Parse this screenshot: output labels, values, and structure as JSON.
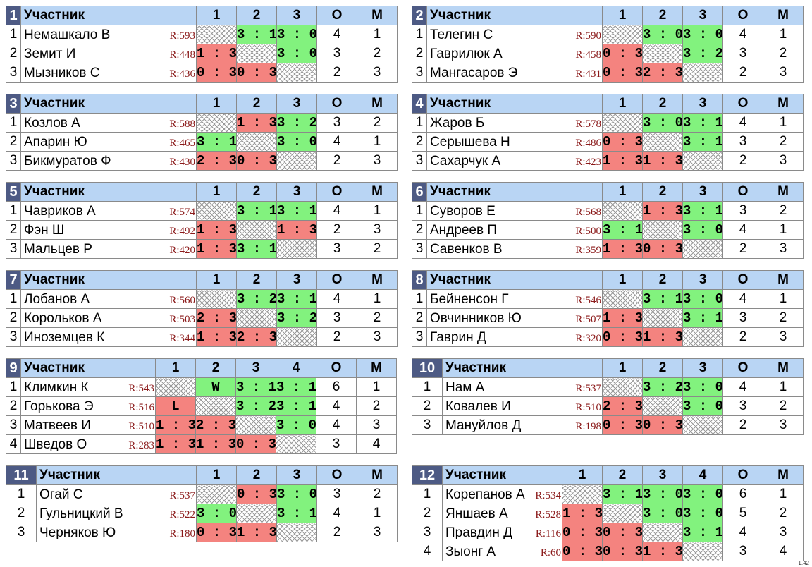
{
  "header": {
    "participant": "Участник",
    "points": "О",
    "place": "М"
  },
  "version": "1.42",
  "groups": [
    {
      "num": "1",
      "cols": [
        "1",
        "2",
        "3"
      ],
      "players": [
        {
          "idx": "1",
          "name": "Немашкало В",
          "rating": "R:593",
          "results": [
            "",
            "3 : 1",
            "3 : 0"
          ],
          "types": [
            "self",
            "win",
            "win"
          ],
          "points": "4",
          "place": "1"
        },
        {
          "idx": "2",
          "name": "Земит И",
          "rating": "R:448",
          "results": [
            "1 : 3",
            "",
            "3 : 0"
          ],
          "types": [
            "loss",
            "self",
            "win"
          ],
          "points": "3",
          "place": "2"
        },
        {
          "idx": "3",
          "name": "Мызников С",
          "rating": "R:436",
          "results": [
            "0 : 3",
            "0 : 3",
            ""
          ],
          "types": [
            "loss",
            "loss",
            "self"
          ],
          "points": "2",
          "place": "3"
        }
      ]
    },
    {
      "num": "2",
      "cols": [
        "1",
        "2",
        "3"
      ],
      "players": [
        {
          "idx": "1",
          "name": "Телегин С",
          "rating": "R:590",
          "results": [
            "",
            "3 : 0",
            "3 : 0"
          ],
          "types": [
            "self",
            "win",
            "win"
          ],
          "points": "4",
          "place": "1"
        },
        {
          "idx": "2",
          "name": "Гаврилюк А",
          "rating": "R:458",
          "results": [
            "0 : 3",
            "",
            "3 : 2"
          ],
          "types": [
            "loss",
            "self",
            "win"
          ],
          "points": "3",
          "place": "2"
        },
        {
          "idx": "3",
          "name": "Мангасаров Э",
          "rating": "R:431",
          "results": [
            "0 : 3",
            "2 : 3",
            ""
          ],
          "types": [
            "loss",
            "loss",
            "self"
          ],
          "points": "2",
          "place": "3"
        }
      ]
    },
    {
      "num": "3",
      "cols": [
        "1",
        "2",
        "3"
      ],
      "players": [
        {
          "idx": "1",
          "name": "Козлов А",
          "rating": "R:588",
          "results": [
            "",
            "1 : 3",
            "3 : 2"
          ],
          "types": [
            "self",
            "loss",
            "win"
          ],
          "points": "3",
          "place": "2"
        },
        {
          "idx": "2",
          "name": "Апарин Ю",
          "rating": "R:465",
          "results": [
            "3 : 1",
            "",
            "3 : 0"
          ],
          "types": [
            "win",
            "self",
            "win"
          ],
          "points": "4",
          "place": "1"
        },
        {
          "idx": "3",
          "name": "Бикмуратов Ф",
          "rating": "R:430",
          "results": [
            "2 : 3",
            "0 : 3",
            ""
          ],
          "types": [
            "loss",
            "loss",
            "self"
          ],
          "points": "2",
          "place": "3"
        }
      ]
    },
    {
      "num": "4",
      "cols": [
        "1",
        "2",
        "3"
      ],
      "players": [
        {
          "idx": "1",
          "name": "Жаров Б",
          "rating": "R:578",
          "results": [
            "",
            "3 : 0",
            "3 : 1"
          ],
          "types": [
            "self",
            "win",
            "win"
          ],
          "points": "4",
          "place": "1"
        },
        {
          "idx": "2",
          "name": "Серышева Н",
          "rating": "R:486",
          "results": [
            "0 : 3",
            "",
            "3 : 1"
          ],
          "types": [
            "loss",
            "self",
            "win"
          ],
          "points": "3",
          "place": "2"
        },
        {
          "idx": "3",
          "name": "Сахарчук А",
          "rating": "R:423",
          "results": [
            "1 : 3",
            "1 : 3",
            ""
          ],
          "types": [
            "loss",
            "loss",
            "self"
          ],
          "points": "2",
          "place": "3"
        }
      ]
    },
    {
      "num": "5",
      "cols": [
        "1",
        "2",
        "3"
      ],
      "players": [
        {
          "idx": "1",
          "name": "Чавриков А",
          "rating": "R:574",
          "results": [
            "",
            "3 : 1",
            "3 : 1"
          ],
          "types": [
            "self",
            "win",
            "win"
          ],
          "points": "4",
          "place": "1"
        },
        {
          "idx": "2",
          "name": "Фэн Ш",
          "rating": "R:492",
          "results": [
            "1 : 3",
            "",
            "1 : 3"
          ],
          "types": [
            "loss",
            "self",
            "loss"
          ],
          "points": "2",
          "place": "3"
        },
        {
          "idx": "3",
          "name": "Мальцев Р",
          "rating": "R:420",
          "results": [
            "1 : 3",
            "3 : 1",
            ""
          ],
          "types": [
            "loss",
            "win",
            "self"
          ],
          "points": "3",
          "place": "2"
        }
      ]
    },
    {
      "num": "6",
      "cols": [
        "1",
        "2",
        "3"
      ],
      "players": [
        {
          "idx": "1",
          "name": "Суворов Е",
          "rating": "R:568",
          "results": [
            "",
            "1 : 3",
            "3 : 1"
          ],
          "types": [
            "self",
            "loss",
            "win"
          ],
          "points": "3",
          "place": "2"
        },
        {
          "idx": "2",
          "name": "Андреев П",
          "rating": "R:500",
          "results": [
            "3 : 1",
            "",
            "3 : 0"
          ],
          "types": [
            "win",
            "self",
            "win"
          ],
          "points": "4",
          "place": "1"
        },
        {
          "idx": "3",
          "name": "Савенков В",
          "rating": "R:359",
          "results": [
            "1 : 3",
            "0 : 3",
            ""
          ],
          "types": [
            "loss",
            "loss",
            "self"
          ],
          "points": "2",
          "place": "3"
        }
      ]
    },
    {
      "num": "7",
      "cols": [
        "1",
        "2",
        "3"
      ],
      "players": [
        {
          "idx": "1",
          "name": "Лобанов А",
          "rating": "R:560",
          "results": [
            "",
            "3 : 2",
            "3 : 1"
          ],
          "types": [
            "self",
            "win",
            "win"
          ],
          "points": "4",
          "place": "1"
        },
        {
          "idx": "2",
          "name": "Корольков А",
          "rating": "R:503",
          "results": [
            "2 : 3",
            "",
            "3 : 2"
          ],
          "types": [
            "loss",
            "self",
            "win"
          ],
          "points": "3",
          "place": "2"
        },
        {
          "idx": "3",
          "name": "Иноземцев К",
          "rating": "R:344",
          "results": [
            "1 : 3",
            "2 : 3",
            ""
          ],
          "types": [
            "loss",
            "loss",
            "self"
          ],
          "points": "2",
          "place": "3"
        }
      ]
    },
    {
      "num": "8",
      "cols": [
        "1",
        "2",
        "3"
      ],
      "players": [
        {
          "idx": "1",
          "name": "Бейненсон Г",
          "rating": "R:546",
          "results": [
            "",
            "3 : 1",
            "3 : 0"
          ],
          "types": [
            "self",
            "win",
            "win"
          ],
          "points": "4",
          "place": "1"
        },
        {
          "idx": "2",
          "name": "Овчинников Ю",
          "rating": "R:507",
          "results": [
            "1 : 3",
            "",
            "3 : 1"
          ],
          "types": [
            "loss",
            "self",
            "win"
          ],
          "points": "3",
          "place": "2"
        },
        {
          "idx": "3",
          "name": "Гаврин Д",
          "rating": "R:320",
          "results": [
            "0 : 3",
            "1 : 3",
            ""
          ],
          "types": [
            "loss",
            "loss",
            "self"
          ],
          "points": "2",
          "place": "3"
        }
      ]
    },
    {
      "num": "9",
      "cols": [
        "1",
        "2",
        "3",
        "4"
      ],
      "players": [
        {
          "idx": "1",
          "name": "Климкин К",
          "rating": "R:543",
          "results": [
            "",
            "W",
            "3 : 1",
            "3 : 1"
          ],
          "types": [
            "self",
            "win",
            "win",
            "win"
          ],
          "points": "6",
          "place": "1"
        },
        {
          "idx": "2",
          "name": "Горькова Э",
          "rating": "R:516",
          "results": [
            "L",
            "",
            "3 : 2",
            "3 : 1"
          ],
          "types": [
            "loss",
            "self",
            "win",
            "win"
          ],
          "points": "4",
          "place": "2"
        },
        {
          "idx": "3",
          "name": "Матвеев И",
          "rating": "R:510",
          "results": [
            "1 : 3",
            "2 : 3",
            "",
            "3 : 0"
          ],
          "types": [
            "loss",
            "loss",
            "self",
            "win"
          ],
          "points": "4",
          "place": "3"
        },
        {
          "idx": "4",
          "name": "Шведов О",
          "rating": "R:283",
          "results": [
            "1 : 3",
            "1 : 3",
            "0 : 3",
            ""
          ],
          "types": [
            "loss",
            "loss",
            "loss",
            "self"
          ],
          "points": "3",
          "place": "4"
        }
      ]
    },
    {
      "num": "10",
      "cols": [
        "1",
        "2",
        "3"
      ],
      "players": [
        {
          "idx": "1",
          "name": "Нам А",
          "rating": "R:537",
          "results": [
            "",
            "3 : 2",
            "3 : 0"
          ],
          "types": [
            "self",
            "win",
            "win"
          ],
          "points": "4",
          "place": "1"
        },
        {
          "idx": "2",
          "name": "Ковалев И",
          "rating": "R:510",
          "results": [
            "2 : 3",
            "",
            "3 : 0"
          ],
          "types": [
            "loss",
            "self",
            "win"
          ],
          "points": "3",
          "place": "2"
        },
        {
          "idx": "3",
          "name": "Мануйлов Д",
          "rating": "R:198",
          "results": [
            "0 : 3",
            "0 : 3",
            ""
          ],
          "types": [
            "loss",
            "loss",
            "self"
          ],
          "points": "2",
          "place": "3"
        }
      ]
    },
    {
      "num": "11",
      "cols": [
        "1",
        "2",
        "3"
      ],
      "players": [
        {
          "idx": "1",
          "name": "Огай С",
          "rating": "R:537",
          "results": [
            "",
            "0 : 3",
            "3 : 0"
          ],
          "types": [
            "self",
            "loss",
            "win"
          ],
          "points": "3",
          "place": "2"
        },
        {
          "idx": "2",
          "name": "Гульницкий В",
          "rating": "R:522",
          "results": [
            "3 : 0",
            "",
            "3 : 1"
          ],
          "types": [
            "win",
            "self",
            "win"
          ],
          "points": "4",
          "place": "1"
        },
        {
          "idx": "3",
          "name": "Черняков Ю",
          "rating": "R:180",
          "results": [
            "0 : 3",
            "1 : 3",
            ""
          ],
          "types": [
            "loss",
            "loss",
            "self"
          ],
          "points": "2",
          "place": "3"
        }
      ]
    },
    {
      "num": "12",
      "cols": [
        "1",
        "2",
        "3",
        "4"
      ],
      "players": [
        {
          "idx": "1",
          "name": "Корепанов А",
          "rating": "R:534",
          "results": [
            "",
            "3 : 1",
            "3 : 0",
            "3 : 0"
          ],
          "types": [
            "self",
            "win",
            "win",
            "win"
          ],
          "points": "6",
          "place": "1"
        },
        {
          "idx": "2",
          "name": "Яншаев А",
          "rating": "R:528",
          "results": [
            "1 : 3",
            "",
            "3 : 0",
            "3 : 0"
          ],
          "types": [
            "loss",
            "self",
            "win",
            "win"
          ],
          "points": "5",
          "place": "2"
        },
        {
          "idx": "3",
          "name": "Правдин Д",
          "rating": "R:116",
          "results": [
            "0 : 3",
            "0 : 3",
            "",
            "3 : 1"
          ],
          "types": [
            "loss",
            "loss",
            "self",
            "win"
          ],
          "points": "4",
          "place": "3"
        },
        {
          "idx": "4",
          "name": "Зыонг А",
          "rating": "R:60",
          "results": [
            "0 : 3",
            "0 : 3",
            "1 : 3",
            ""
          ],
          "types": [
            "loss",
            "loss",
            "loss",
            "self"
          ],
          "points": "3",
          "place": "4"
        }
      ]
    }
  ]
}
